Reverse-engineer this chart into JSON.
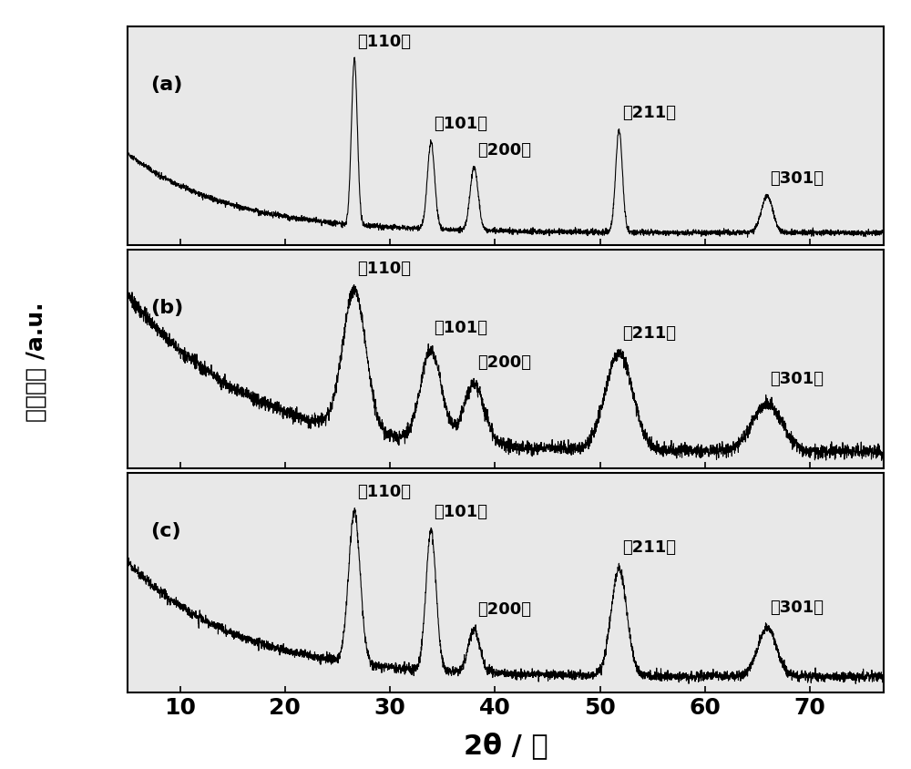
{
  "xlim": [
    5,
    77
  ],
  "xlabel": "2θ / 度",
  "ylabel": "相对强度 /a.u.",
  "xticks": [
    10,
    20,
    30,
    40,
    50,
    60,
    70
  ],
  "panel_labels": [
    "(a)",
    "(b)",
    "(c)"
  ],
  "peak_labels_unicode": [
    "（110）",
    "（101）",
    "（200）",
    "（211）",
    "（301）"
  ],
  "peak_labels_ascii": [
    "(110)",
    "(101)",
    "(200)",
    "(211)",
    "(301)"
  ],
  "peak_positions": [
    26.6,
    33.9,
    38.0,
    51.8,
    65.9
  ],
  "line_color": "#000000",
  "figure_bg": "#ffffff",
  "panel_bg": "#e8e8e8"
}
